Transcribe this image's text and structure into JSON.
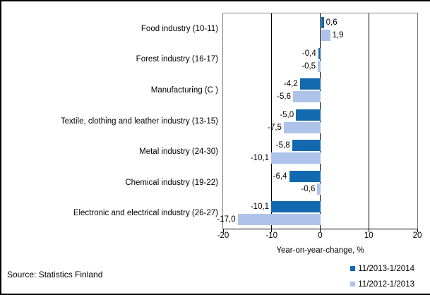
{
  "chart_data": {
    "type": "bar",
    "orientation": "horizontal",
    "title": "",
    "categories": [
      "Food industry (10-11)",
      "Forest industry (16-17)",
      "Manufacturing (C )",
      "Textile, clothing and leather industry (13-15)",
      "Metal industry (24-30)",
      "Chemical industry (19-22)",
      "Electronic and electrical industry (26-27)"
    ],
    "series": [
      {
        "name": "11/2013-1/2014",
        "color": "#1269B0",
        "values": [
          0.6,
          -0.4,
          -4.2,
          -5.0,
          -5.8,
          -6.4,
          -10.1
        ],
        "labels": [
          "0,6",
          "-0,4",
          "-4,2",
          "-5,0",
          "-5,8",
          "-6,4",
          "-10,1"
        ]
      },
      {
        "name": "11/2012-1/2013",
        "color": "#AEC3E9",
        "values": [
          1.9,
          -0.5,
          -5.6,
          -7.5,
          -10.1,
          -0.6,
          -17.0
        ],
        "labels": [
          "1,9",
          "-0,5",
          "-5,6",
          "-7,5",
          "-10,1",
          "-0,6",
          "-17,0"
        ]
      }
    ],
    "xlabel": "Year-on-year-change, %",
    "xlim": [
      -20,
      20
    ],
    "xticks": [
      -20,
      -10,
      0,
      10,
      20
    ],
    "xtick_labels": [
      "-20",
      "-10",
      "0",
      "10",
      "20"
    ],
    "gridlines": [
      -10,
      0,
      10
    ],
    "grid": "vertical-only",
    "legend_position": "bottom-right"
  },
  "source": "Source: Statistics Finland",
  "colors": {
    "series_dark": "#1269B0",
    "series_light": "#AEC3E9",
    "plot_border": "#808080",
    "gridline": "#000000",
    "frame_border": "#000000",
    "background": "#FFFFFF",
    "text": "#000000"
  }
}
